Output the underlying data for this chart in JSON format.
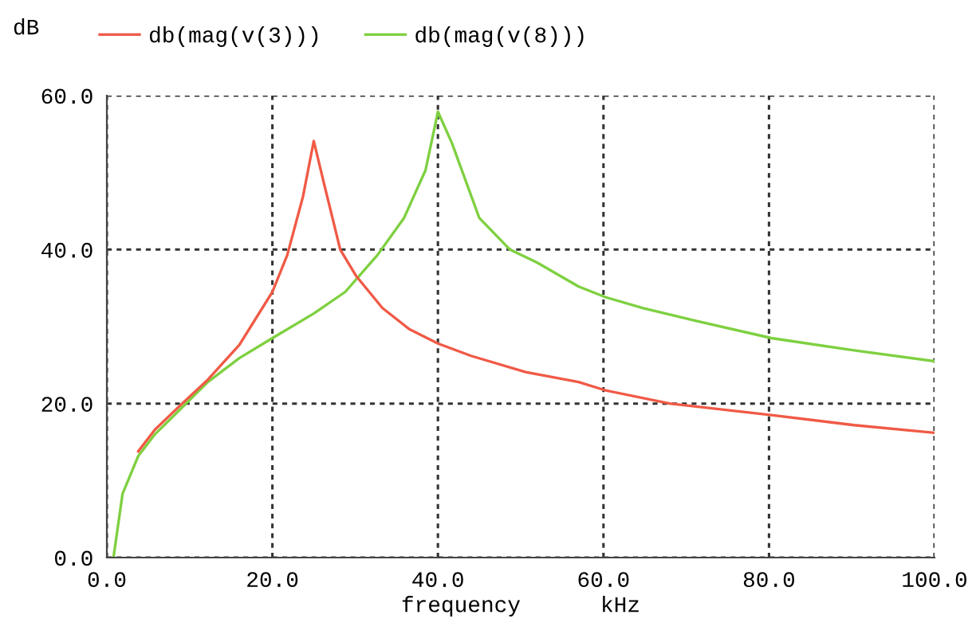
{
  "chart_data": {
    "type": "line",
    "xlabel": "frequency      kHz",
    "ylabel": "dB",
    "xlim": [
      0,
      100
    ],
    "ylim": [
      0,
      60
    ],
    "xticks": [
      {
        "value": 0,
        "label": "0.0"
      },
      {
        "value": 20,
        "label": "20.0"
      },
      {
        "value": 40,
        "label": "40.0"
      },
      {
        "value": 60,
        "label": "60.0"
      },
      {
        "value": 80,
        "label": "80.0"
      },
      {
        "value": 100,
        "label": "100.0"
      }
    ],
    "yticks": [
      {
        "value": 0,
        "label": "0.0"
      },
      {
        "value": 20,
        "label": "20.0"
      },
      {
        "value": 40,
        "label": "40.0"
      },
      {
        "value": 60,
        "label": "60.0"
      }
    ],
    "grid": true,
    "legend": "top",
    "marker": "none",
    "line_style": "solid",
    "series": [
      {
        "name": "db(mag(v(3)))",
        "color": "#f05a46",
        "x": [
          3.8,
          5.8,
          9,
          12.2,
          16,
          20,
          21.8,
          23.7,
          25,
          26.3,
          28.2,
          30.1,
          33.3,
          36.5,
          40,
          44,
          50.6,
          57,
          60.3,
          68,
          80.3,
          90.3,
          100
        ],
        "values": [
          13.8,
          16.6,
          19.9,
          23.1,
          27.6,
          34.5,
          39.3,
          46.9,
          54.1,
          48.3,
          40,
          36.6,
          32.4,
          29.7,
          27.8,
          26.2,
          24.1,
          22.8,
          21.7,
          20,
          18.5,
          17.2,
          16.2
        ]
      },
      {
        "name": "db(mag(v(8)))",
        "color": "#7ed040",
        "x": [
          0.8,
          1.9,
          3.8,
          5.8,
          9,
          12.2,
          16,
          20,
          25,
          28.8,
          32.7,
          35.9,
          38.5,
          40,
          41.7,
          45,
          48.7,
          52,
          57,
          60.3,
          64.8,
          71.3,
          80.3,
          90.3,
          100
        ],
        "values": [
          0,
          8.3,
          13.2,
          16.0,
          19.4,
          22.8,
          25.9,
          28.5,
          31.7,
          34.5,
          39.3,
          44.1,
          50.3,
          57.9,
          53.8,
          44.1,
          40,
          38.3,
          35.2,
          33.8,
          32.4,
          30.7,
          28.5,
          26.9,
          25.5
        ]
      }
    ]
  }
}
